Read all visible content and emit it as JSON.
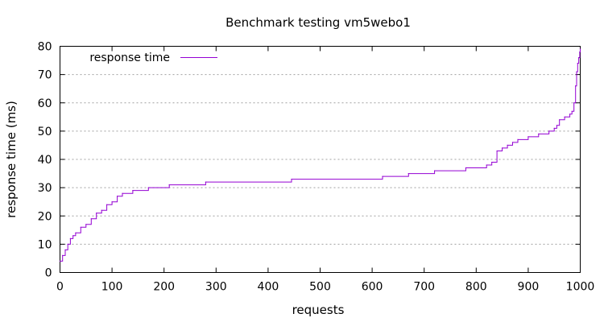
{
  "chart_data": {
    "type": "line",
    "title": "Benchmark testing vm5webo1",
    "xlabel": "requests",
    "ylabel": "response time (ms)",
    "xlim": [
      0,
      1000
    ],
    "ylim": [
      0,
      80
    ],
    "xticks": [
      "0",
      "100",
      "200",
      "300",
      "400",
      "500",
      "600",
      "700",
      "800",
      "900",
      "1000"
    ],
    "yticks": [
      "0",
      "10",
      "20",
      "30",
      "40",
      "50",
      "60",
      "70",
      "80"
    ],
    "grid": "horizontal",
    "legend_position": "top-left",
    "colors": {
      "series": "#9400d3"
    },
    "series": [
      {
        "name": "response time",
        "x": [
          0,
          5,
          10,
          15,
          20,
          25,
          30,
          40,
          50,
          60,
          70,
          80,
          90,
          100,
          110,
          120,
          140,
          170,
          210,
          280,
          445,
          620,
          670,
          720,
          780,
          820,
          830,
          840,
          850,
          860,
          870,
          880,
          900,
          920,
          940,
          950,
          955,
          960,
          970,
          980,
          984,
          988,
          991,
          993,
          995,
          997,
          999,
          1000
        ],
        "y": [
          4,
          6,
          8,
          10,
          12,
          13,
          14,
          16,
          17,
          19,
          21,
          22,
          24,
          25,
          27,
          28,
          29,
          30,
          31,
          32,
          33,
          34,
          35,
          36,
          37,
          38,
          39,
          43,
          44,
          45,
          46,
          47,
          48,
          49,
          50,
          51,
          52,
          54,
          55,
          56,
          57,
          60,
          66,
          71,
          74,
          76,
          78,
          79
        ]
      }
    ]
  }
}
